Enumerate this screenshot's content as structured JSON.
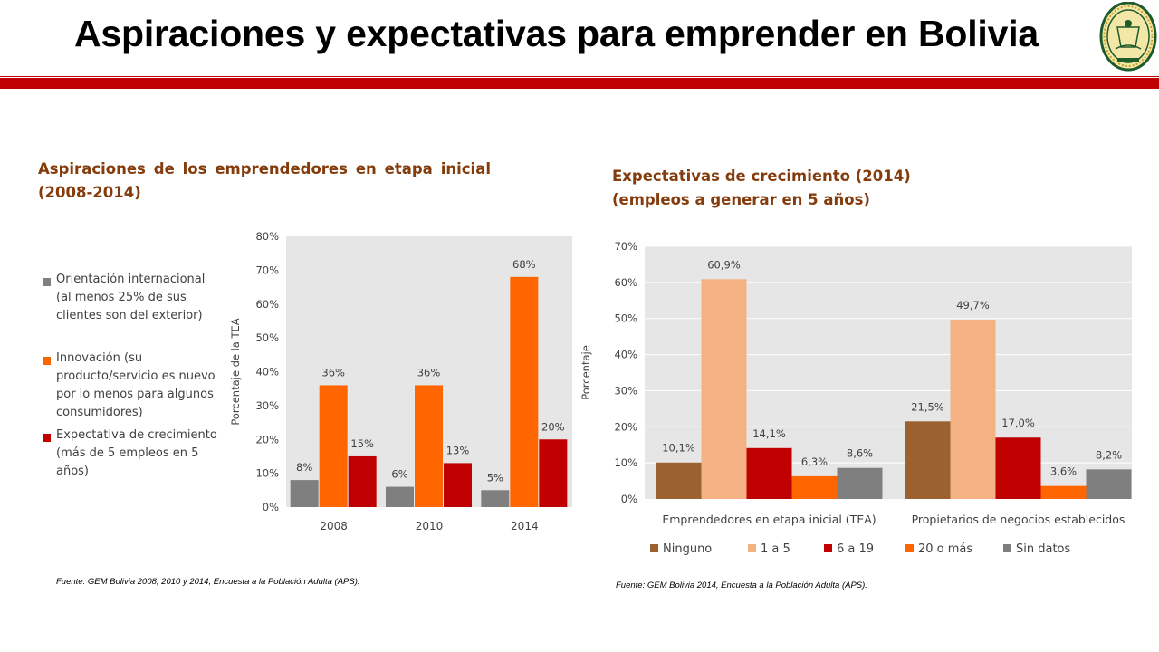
{
  "page": {
    "title": "Aspiraciones y expectativas para emprender en Bolivia"
  },
  "left": {
    "heading": "Aspiraciones de los emprendedores en etapa inicial (2008-2014)",
    "source": "Fuente: GEM Bolivia 2008, 2010 y 2014, Encuesta a la Población Adulta (APS)."
  },
  "right": {
    "heading_line1": "Expectativas de crecimiento (2014)",
    "heading_line2": "(empleos a generar en 5 años)",
    "source": "Fuente: GEM Bolivia 2014, Encuesta a la Población Adulta (APS)."
  },
  "colors": {
    "accent_red": "#c00000",
    "heading_brown": "#843c0c",
    "plot_bg": "#e7e6e6"
  },
  "chart_data": [
    {
      "type": "bar",
      "categories": [
        "2008",
        "2010",
        "2014"
      ],
      "series": [
        {
          "name": "Orientación internacional (al menos 25% de sus clientes son del exterior)",
          "values": [
            8,
            6,
            5
          ],
          "labels": [
            "8%",
            "6%",
            "5%"
          ],
          "color": "#7f7f7f"
        },
        {
          "name": "Innovación (su producto/servicio es nuevo por lo menos para algunos consumidores)",
          "values": [
            36,
            36,
            68
          ],
          "labels": [
            "36%",
            "36%",
            "68%"
          ],
          "color": "#ff6600"
        },
        {
          "name": "Expectativa de crecimiento (más de 5 empleos en 5 años)",
          "values": [
            15,
            13,
            20
          ],
          "labels": [
            "15%",
            "13%",
            "20%"
          ],
          "color": "#c00000"
        }
      ],
      "ylabel": "Porcentaje de la TEA",
      "ylim": [
        0,
        80
      ],
      "yticks": [
        "0%",
        "10%",
        "20%",
        "30%",
        "40%",
        "50%",
        "60%",
        "70%",
        "80%"
      ],
      "grid": false,
      "legend": "left"
    },
    {
      "type": "bar",
      "categories": [
        "Emprendedores en etapa inicial (TEA)",
        "Propietarios de negocios establecidos"
      ],
      "series": [
        {
          "name": "Ninguno",
          "values": [
            10.1,
            21.5
          ],
          "labels": [
            "10,1%",
            "21,5%"
          ],
          "color": "#9c6131"
        },
        {
          "name": "1 a 5",
          "values": [
            60.9,
            49.7
          ],
          "labels": [
            "60,9%",
            "49,7%"
          ],
          "color": "#f4b183"
        },
        {
          "name": "6 a 19",
          "values": [
            14.1,
            17.0
          ],
          "labels": [
            "14,1%",
            "17,0%"
          ],
          "color": "#c00000"
        },
        {
          "name": "20 o más",
          "values": [
            6.3,
            3.6
          ],
          "labels": [
            "6,3%",
            "3,6%"
          ],
          "color": "#ff6600"
        },
        {
          "name": "Sin datos",
          "values": [
            8.6,
            8.2
          ],
          "labels": [
            "8,6%",
            "8,2%"
          ],
          "color": "#7f7f7f"
        }
      ],
      "ylabel": "Porcentaje",
      "ylim": [
        0,
        70
      ],
      "yticks": [
        "0%",
        "10%",
        "20%",
        "30%",
        "40%",
        "50%",
        "60%",
        "70%"
      ],
      "grid": true,
      "legend": "bottom"
    }
  ]
}
